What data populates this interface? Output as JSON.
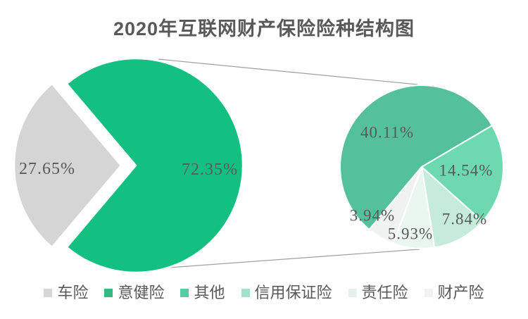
{
  "title": {
    "year": "2020",
    "rest": "年互联网财产保险险种结构图"
  },
  "chart_data": {
    "type": "pie",
    "variant": "pie-of-pie",
    "title": "2020年互联网财产保险险种结构图",
    "categories": [
      "车险",
      "意健险",
      "其他",
      "信用保证险",
      "责任险",
      "财产险"
    ],
    "values": [
      27.65,
      40.11,
      14.54,
      7.84,
      5.93,
      3.94
    ],
    "unit": "%",
    "grid": false,
    "legend_position": "bottom",
    "main_pie": {
      "slices": [
        {
          "name": "combined-other",
          "label": "72.35%",
          "value": 72.35,
          "color": "#13BF81",
          "start": 319.75,
          "explode": 0
        },
        {
          "name": "che-xian",
          "label": "27.65%",
          "value": 27.65,
          "color": "#D5D5D5",
          "start": 220.25,
          "explode": 21
        }
      ]
    },
    "secondary_pie": {
      "start_angle": 220,
      "total": 72.36,
      "slices": [
        {
          "name": "yi-jian-xian",
          "label": "40.11%",
          "value": 40.11,
          "color": "#55C09C"
        },
        {
          "name": "qi-ta",
          "label": "14.54%",
          "value": 14.54,
          "color": "#6ED8B1"
        },
        {
          "name": "xin-yong-bao-zheng-xian",
          "label": "7.84%",
          "value": 7.84,
          "color": "#C5EBDA"
        },
        {
          "name": "ze-ren-xian",
          "label": "5.93%",
          "value": 5.93,
          "color": "#EAF7F1"
        },
        {
          "name": "cai-chan-xian",
          "label": "3.94%",
          "value": 3.94,
          "color": "#F0F1F1"
        }
      ]
    },
    "connector_color": "#A0A0A0",
    "slice_border_color": "#FFFFFF"
  },
  "legend": {
    "items": [
      {
        "label": "车险",
        "color": "#D6D6D6"
      },
      {
        "label": "意健险",
        "color": "#35B983"
      },
      {
        "label": "其他",
        "color": "#57CBA2"
      },
      {
        "label": "信用保证险",
        "color": "#A3E1C8"
      },
      {
        "label": "责任险",
        "color": "#E3F3EC"
      },
      {
        "label": "财产险",
        "color": "#F1F2F1"
      }
    ]
  }
}
